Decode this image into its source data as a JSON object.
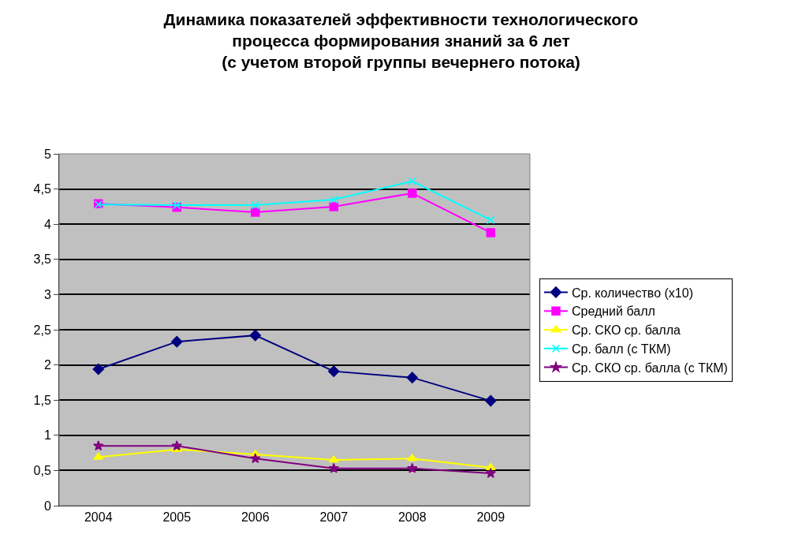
{
  "chart_data": {
    "type": "line",
    "title": "Динамика показателей эффективности технологического\nпроцесса формирования знаний за 6 лет\n(с учетом второй группы вечернего потока)",
    "categories": [
      "2004",
      "2005",
      "2006",
      "2007",
      "2008",
      "2009"
    ],
    "series": [
      {
        "name": "Ср. количество (x10)",
        "color": "#000080",
        "marker": "diamond",
        "values": [
          1.94,
          2.33,
          2.42,
          1.91,
          1.82,
          1.49
        ]
      },
      {
        "name": "Средний балл",
        "color": "#ff00ff",
        "marker": "square",
        "values": [
          4.29,
          4.24,
          4.17,
          4.25,
          4.44,
          3.88
        ]
      },
      {
        "name": "Ср. СКО ср. балла",
        "color": "#ffff00",
        "marker": "triangle",
        "values": [
          0.69,
          0.8,
          0.73,
          0.65,
          0.67,
          0.54
        ]
      },
      {
        "name": "Ср. балл (с ТКМ)",
        "color": "#00ffff",
        "marker": "cross",
        "values": [
          4.28,
          4.27,
          4.27,
          4.35,
          4.61,
          4.06
        ]
      },
      {
        "name": "Ср. СКО ср. балла (с ТКМ)",
        "color": "#800080",
        "marker": "star",
        "values": [
          0.85,
          0.85,
          0.67,
          0.53,
          0.53,
          0.46
        ]
      }
    ],
    "ylim": [
      0,
      5
    ],
    "yticks": [
      0,
      {
        "value": 0.5,
        "label": "0,5"
      },
      1,
      {
        "value": 1.5,
        "label": "1,5"
      },
      2,
      {
        "value": 2.5,
        "label": "2,5"
      },
      3,
      {
        "value": 3.5,
        "label": "3,5"
      },
      4,
      {
        "value": 4.5,
        "label": "4,5"
      },
      5
    ],
    "grid": "y",
    "legend": "right"
  }
}
